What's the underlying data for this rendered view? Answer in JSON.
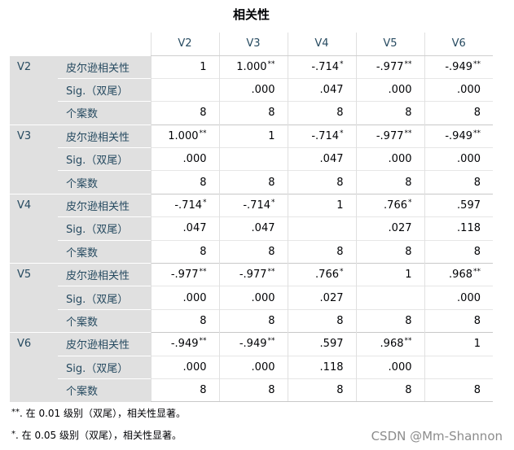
{
  "table": {
    "title": "相关性",
    "columns": [
      "V2",
      "V3",
      "V4",
      "V5",
      "V6"
    ],
    "groups": [
      {
        "var": "V2",
        "rows": [
          {
            "stat": "皮尔逊相关性",
            "cells": [
              {
                "v": "1"
              },
              {
                "v": "1.000",
                "sig": "**"
              },
              {
                "v": "-.714",
                "sig": "*"
              },
              {
                "v": "-.977",
                "sig": "**"
              },
              {
                "v": "-.949",
                "sig": "**"
              }
            ]
          },
          {
            "stat": "Sig.（双尾）",
            "cells": [
              {
                "v": ""
              },
              {
                "v": ".000"
              },
              {
                "v": ".047"
              },
              {
                "v": ".000"
              },
              {
                "v": ".000"
              }
            ]
          },
          {
            "stat": "个案数",
            "cells": [
              {
                "v": "8"
              },
              {
                "v": "8"
              },
              {
                "v": "8"
              },
              {
                "v": "8"
              },
              {
                "v": "8"
              }
            ]
          }
        ]
      },
      {
        "var": "V3",
        "rows": [
          {
            "stat": "皮尔逊相关性",
            "cells": [
              {
                "v": "1.000",
                "sig": "**"
              },
              {
                "v": "1"
              },
              {
                "v": "-.714",
                "sig": "*"
              },
              {
                "v": "-.977",
                "sig": "**"
              },
              {
                "v": "-.949",
                "sig": "**"
              }
            ]
          },
          {
            "stat": "Sig.（双尾）",
            "cells": [
              {
                "v": ".000"
              },
              {
                "v": ""
              },
              {
                "v": ".047"
              },
              {
                "v": ".000"
              },
              {
                "v": ".000"
              }
            ]
          },
          {
            "stat": "个案数",
            "cells": [
              {
                "v": "8"
              },
              {
                "v": "8"
              },
              {
                "v": "8"
              },
              {
                "v": "8"
              },
              {
                "v": "8"
              }
            ]
          }
        ]
      },
      {
        "var": "V4",
        "rows": [
          {
            "stat": "皮尔逊相关性",
            "cells": [
              {
                "v": "-.714",
                "sig": "*"
              },
              {
                "v": "-.714",
                "sig": "*"
              },
              {
                "v": "1"
              },
              {
                "v": ".766",
                "sig": "*"
              },
              {
                "v": ".597"
              }
            ]
          },
          {
            "stat": "Sig.（双尾）",
            "cells": [
              {
                "v": ".047"
              },
              {
                "v": ".047"
              },
              {
                "v": ""
              },
              {
                "v": ".027"
              },
              {
                "v": ".118"
              }
            ]
          },
          {
            "stat": "个案数",
            "cells": [
              {
                "v": "8"
              },
              {
                "v": "8"
              },
              {
                "v": "8"
              },
              {
                "v": "8"
              },
              {
                "v": "8"
              }
            ]
          }
        ]
      },
      {
        "var": "V5",
        "rows": [
          {
            "stat": "皮尔逊相关性",
            "cells": [
              {
                "v": "-.977",
                "sig": "**"
              },
              {
                "v": "-.977",
                "sig": "**"
              },
              {
                "v": ".766",
                "sig": "*"
              },
              {
                "v": "1"
              },
              {
                "v": ".968",
                "sig": "**"
              }
            ]
          },
          {
            "stat": "Sig.（双尾）",
            "cells": [
              {
                "v": ".000"
              },
              {
                "v": ".000"
              },
              {
                "v": ".027"
              },
              {
                "v": ""
              },
              {
                "v": ".000"
              }
            ]
          },
          {
            "stat": "个案数",
            "cells": [
              {
                "v": "8"
              },
              {
                "v": "8"
              },
              {
                "v": "8"
              },
              {
                "v": "8"
              },
              {
                "v": "8"
              }
            ]
          }
        ]
      },
      {
        "var": "V6",
        "rows": [
          {
            "stat": "皮尔逊相关性",
            "cells": [
              {
                "v": "-.949",
                "sig": "**"
              },
              {
                "v": "-.949",
                "sig": "**"
              },
              {
                "v": ".597"
              },
              {
                "v": ".968",
                "sig": "**"
              },
              {
                "v": "1"
              }
            ]
          },
          {
            "stat": "Sig.（双尾）",
            "cells": [
              {
                "v": ".000"
              },
              {
                "v": ".000"
              },
              {
                "v": ".118"
              },
              {
                "v": ".000"
              },
              {
                "v": ""
              }
            ]
          },
          {
            "stat": "个案数",
            "cells": [
              {
                "v": "8"
              },
              {
                "v": "8"
              },
              {
                "v": "8"
              },
              {
                "v": "8"
              },
              {
                "v": "8"
              }
            ]
          }
        ]
      }
    ]
  },
  "footnotes": [
    {
      "marker": "**",
      "text": ". 在 0.01 级别（双尾），相关性显著。"
    },
    {
      "marker": "*",
      "text": ". 在 0.05 级别（双尾），相关性显著。"
    }
  ],
  "watermark": "CSDN @Mm-Shannon",
  "colors": {
    "label_text": "#264A60",
    "row_header_bg": "#E0E0E0",
    "value_text": "#010205",
    "watermark_text": "#8c8c8c"
  }
}
